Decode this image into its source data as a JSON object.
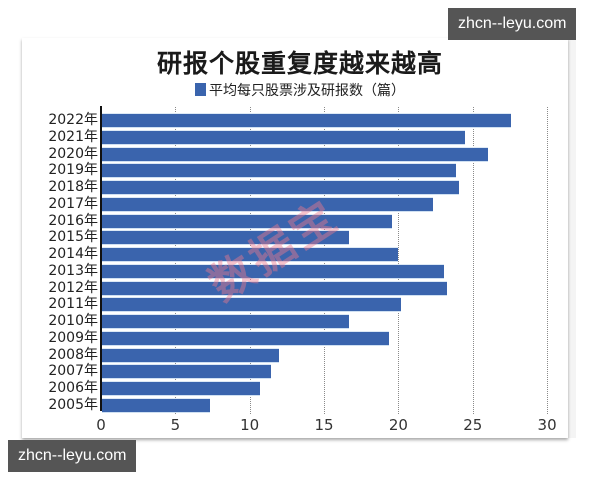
{
  "colors": {
    "bar": "#3a64ad",
    "watermark": "#eb788c",
    "badge_bg": "#555555"
  },
  "watermark_text": "数据宝",
  "badges": {
    "top": "zhcn--leyu.com",
    "bottom": "zhcn--leyu.com"
  },
  "chart_data": {
    "type": "bar",
    "orientation": "horizontal",
    "title": "研报个股重复度越来越高",
    "legend": [
      "平均每只股票涉及研报数（篇）"
    ],
    "legend_position": "top",
    "xlabel": "",
    "ylabel": "",
    "xlim": [
      0,
      30
    ],
    "xticks": [
      "0",
      "5",
      "10",
      "15",
      "20",
      "25",
      "30"
    ],
    "grid": "vertical dotted",
    "categories": [
      "2022年",
      "2021年",
      "2020年",
      "2019年",
      "2018年",
      "2017年",
      "2016年",
      "2015年",
      "2014年",
      "2013年",
      "2012年",
      "2011年",
      "2010年",
      "2009年",
      "2008年",
      "2007年",
      "2006年",
      "2005年"
    ],
    "series": [
      {
        "name": "平均每只股票涉及研报数（篇）",
        "values": [
          27.6,
          24.5,
          26.0,
          23.9,
          24.1,
          22.3,
          19.6,
          16.7,
          20.0,
          23.1,
          23.3,
          20.2,
          16.7,
          19.4,
          12.0,
          11.4,
          10.7,
          7.3
        ]
      }
    ]
  }
}
